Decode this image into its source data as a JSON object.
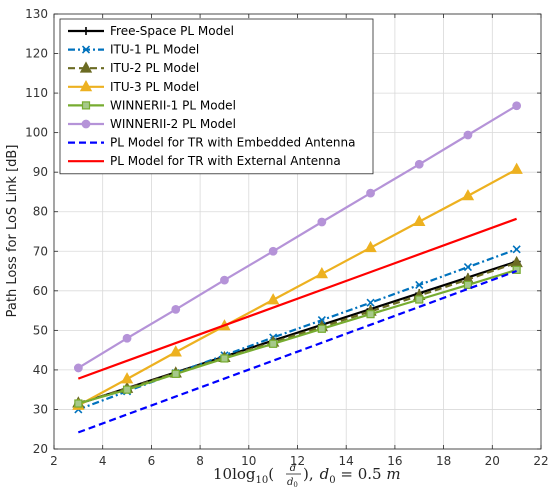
{
  "chart_data": {
    "type": "line",
    "xlabel_parts": {
      "prefix": "10log",
      "sub": "10",
      "open": "(",
      "frac_num": "d",
      "frac_den": "d",
      "frac_den_sub": "0",
      "close": "),",
      "d": "d",
      "d_sub": "0",
      "rest": " = 0.5 ",
      "unit": "m"
    },
    "ylabel": "Path Loss for LoS Link [dB]",
    "xlim": [
      2,
      22
    ],
    "ylim": [
      20,
      130
    ],
    "xticks": [
      2,
      4,
      6,
      8,
      10,
      12,
      14,
      16,
      18,
      20,
      22
    ],
    "yticks": [
      20,
      30,
      40,
      50,
      60,
      70,
      80,
      90,
      100,
      110,
      120,
      130
    ],
    "grid": true,
    "legend_position": "top-left",
    "series": [
      {
        "name": "Free-Space PL Model",
        "color": "#000000",
        "dash": "solid",
        "marker": "plus",
        "x": [
          3,
          5,
          7,
          9,
          11,
          13,
          15,
          17,
          19,
          21
        ],
        "y": [
          31.4,
          35.4,
          39.4,
          43.4,
          47.4,
          51.4,
          55.4,
          59.4,
          63.4,
          67.4
        ]
      },
      {
        "name": "ITU-1 PL Model",
        "color": "#0072BD",
        "dash": "dashdot",
        "marker": "x",
        "x": [
          3,
          5,
          7,
          9,
          11,
          13,
          15,
          17,
          19,
          21
        ],
        "y": [
          30.0,
          34.6,
          39.2,
          43.7,
          48.2,
          52.6,
          57.0,
          61.5,
          66.0,
          70.5
        ]
      },
      {
        "name": "ITU-2 PL Model",
        "color": "#6B6B23",
        "dash": "dashed",
        "marker": "triangle",
        "x": [
          3,
          5,
          7,
          9,
          11,
          13,
          15,
          17,
          19,
          21
        ],
        "y": [
          31.6,
          35.3,
          39.2,
          43.1,
          47.0,
          50.9,
          54.8,
          58.8,
          62.9,
          67.1
        ]
      },
      {
        "name": "ITU-3 PL Model",
        "color": "#EDB120",
        "dash": "solid",
        "marker": "triangle",
        "x": [
          3,
          5,
          7,
          9,
          11,
          13,
          15,
          17,
          19,
          21
        ],
        "y": [
          31.0,
          37.7,
          44.5,
          51.1,
          57.7,
          64.3,
          70.9,
          77.5,
          84.0,
          90.7
        ]
      },
      {
        "name": "WINNERII-1 PL Model",
        "color": "#77AC30",
        "dash": "solid",
        "marker": "square",
        "x": [
          3,
          5,
          7,
          9,
          11,
          13,
          15,
          17,
          19,
          21
        ],
        "y": [
          31.5,
          35.0,
          39.0,
          42.9,
          46.6,
          50.4,
          54.1,
          57.8,
          61.5,
          65.3
        ]
      },
      {
        "name": "WINNERII-2 PL Model",
        "color": "#B593D8",
        "dash": "solid",
        "marker": "circle",
        "x": [
          3,
          5,
          7,
          9,
          11,
          13,
          15,
          17,
          19,
          21
        ],
        "y": [
          40.5,
          48.0,
          55.3,
          62.7,
          70.0,
          77.4,
          84.7,
          92.0,
          99.4,
          106.8
        ]
      },
      {
        "name": "PL Model for TR with Embedded Antenna",
        "color": "#0000FF",
        "dash": "dashed",
        "marker": "none",
        "x": [
          3,
          21
        ],
        "y": [
          24.2,
          65.0
        ]
      },
      {
        "name": "PL Model for TR with External Antenna",
        "color": "#FF0000",
        "dash": "solid",
        "marker": "none",
        "x": [
          3,
          21
        ],
        "y": [
          37.8,
          78.2
        ]
      }
    ]
  }
}
